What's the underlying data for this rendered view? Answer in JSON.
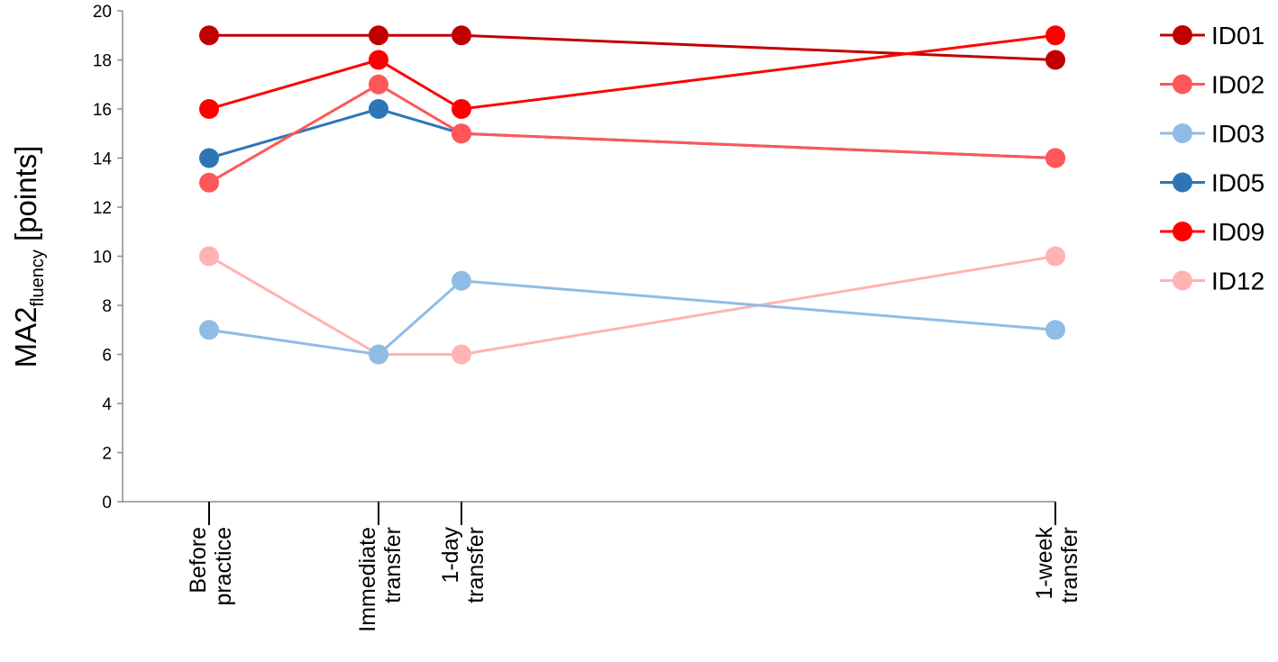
{
  "chart_data": {
    "type": "line",
    "x_categories": [
      {
        "lines": [
          "Before",
          "practice"
        ]
      },
      {
        "lines": [
          "Immediate",
          "transfer"
        ]
      },
      {
        "lines": [
          "1-day",
          "transfer"
        ]
      },
      {
        "lines": [
          "1-week",
          "transfer"
        ]
      }
    ],
    "ylabel": {
      "main": "MA2",
      "subscript": "fluency",
      "unit": " [points]"
    },
    "ylim": [
      0,
      20
    ],
    "y_ticks": [
      0,
      2,
      4,
      6,
      8,
      10,
      12,
      14,
      16,
      18,
      20
    ],
    "grid": false,
    "legend_position": "right",
    "series": [
      {
        "name": "ID01",
        "color": "#c00000",
        "values": [
          19,
          19,
          19,
          18
        ]
      },
      {
        "name": "ID02",
        "color": "#ff5757",
        "values": [
          13,
          17,
          15,
          14
        ]
      },
      {
        "name": "ID03",
        "color": "#8fbce6",
        "values": [
          7,
          6,
          9,
          7
        ]
      },
      {
        "name": "ID05",
        "color": "#2e75b6",
        "values": [
          14,
          16,
          15,
          14
        ]
      },
      {
        "name": "ID09",
        "color": "#ff0000",
        "values": [
          16,
          18,
          16,
          19
        ]
      },
      {
        "name": "ID12",
        "color": "#ffb3b3",
        "values": [
          10,
          6,
          6,
          10
        ]
      }
    ],
    "draw_order": [
      3,
      1,
      5,
      2,
      0,
      4
    ]
  }
}
